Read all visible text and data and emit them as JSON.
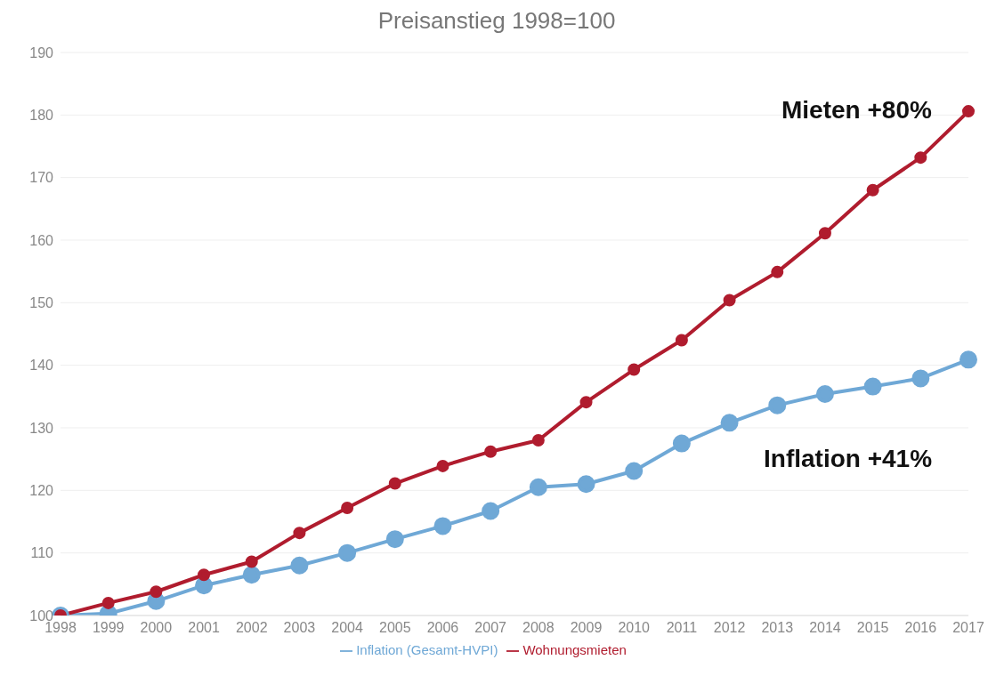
{
  "chart_data": {
    "type": "line",
    "title": "Preisanstieg 1998=100",
    "categories": [
      "1998",
      "1999",
      "2000",
      "2001",
      "2002",
      "2003",
      "2004",
      "2005",
      "2006",
      "2007",
      "2008",
      "2009",
      "2010",
      "2011",
      "2012",
      "2013",
      "2014",
      "2015",
      "2016",
      "2017"
    ],
    "series": [
      {
        "name": "Inflation (Gesamt-HVPI)",
        "color": "#6fa8d6",
        "values": [
          100,
          100.3,
          102.3,
          104.8,
          106.5,
          108,
          110,
          112.2,
          114.3,
          116.7,
          120.5,
          121,
          123.1,
          127.5,
          130.8,
          133.6,
          135.4,
          136.6,
          137.9,
          140.9
        ]
      },
      {
        "name": "Wohnungsmieten",
        "color": "#b01c2e",
        "values": [
          100,
          102,
          103.8,
          106.5,
          108.6,
          113.2,
          117.2,
          121.1,
          123.9,
          126.2,
          128,
          134.1,
          139.3,
          144,
          150.4,
          154.9,
          161.1,
          168,
          173.2,
          180.6
        ]
      }
    ],
    "ylim": [
      100,
      190
    ],
    "yticks": [
      100,
      110,
      120,
      130,
      140,
      150,
      160,
      170,
      180,
      190
    ],
    "grid": "y",
    "legend": "bottom",
    "marker": "circle",
    "line_style": "solid",
    "annotations": [
      "Mieten +80%",
      "Inflation +41%"
    ]
  }
}
